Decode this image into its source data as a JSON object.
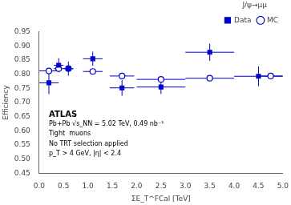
{
  "chart_data": {
    "type": "scatter",
    "xlabel": "ΣE_T^FCal [TeV]",
    "ylabel": "Efficiency",
    "xlim": [
      0,
      5
    ],
    "ylim": [
      0.45,
      0.95
    ],
    "xticks": [
      {
        "value": 0,
        "label": "0.0"
      },
      0.5,
      {
        "value": 1,
        "label": "1.0"
      },
      1.5,
      {
        "value": 2,
        "label": "2.0"
      },
      2.5,
      {
        "value": 3,
        "label": "3.0"
      },
      3.5,
      {
        "value": 4,
        "label": "4.0"
      },
      4.5,
      {
        "value": 5,
        "label": "5.0"
      }
    ],
    "yticks": [
      0.45,
      {
        "value": 0.5,
        "label": "0.50"
      },
      0.55,
      {
        "value": 0.6,
        "label": "0.60"
      },
      0.65,
      {
        "value": 0.7,
        "label": "0.70"
      },
      0.75,
      {
        "value": 0.8,
        "label": "0.80"
      },
      0.85,
      {
        "value": 0.9,
        "label": "0.90"
      },
      0.95
    ],
    "grid": false,
    "legend": "upper right",
    "legend_title": "J/ψ→μμ",
    "annotations": [
      "ATLAS",
      "Pb+Pb √s_NN = 5.02 TeV, 0.49 nb⁻¹",
      "Tight  muons",
      "No TRT selection applied",
      "p_T > 4 GeV, |η| < 2.4"
    ],
    "series": [
      {
        "name": "Data",
        "color": "#0000cc",
        "marker": "square",
        "x": [
          0.2,
          0.4,
          0.6,
          1.1,
          1.7,
          2.5,
          3.5,
          4.5
        ],
        "values": [
          0.77,
          0.832,
          0.82,
          0.855,
          0.752,
          0.755,
          0.878,
          0.793
        ],
        "xerr": [
          0.2,
          0.1,
          0.1,
          0.2,
          0.25,
          0.5,
          0.5,
          0.5
        ],
        "yerr": [
          0.04,
          0.025,
          0.025,
          0.025,
          0.028,
          0.025,
          0.03,
          0.035
        ]
      },
      {
        "name": "MC",
        "color": "#0000cc",
        "marker": "open circle",
        "x": [
          0.2,
          0.4,
          0.6,
          1.1,
          1.7,
          2.5,
          3.5,
          4.75
        ],
        "values": [
          0.812,
          0.82,
          0.82,
          0.81,
          0.794,
          0.782,
          0.786,
          0.794
        ],
        "xerr": [
          0.2,
          0.1,
          0.1,
          0.2,
          0.25,
          0.5,
          0.5,
          0.25
        ],
        "yerr": [
          0.007,
          0.006,
          0.006,
          0.005,
          0.004,
          0.003,
          0.003,
          0.003
        ]
      }
    ]
  }
}
